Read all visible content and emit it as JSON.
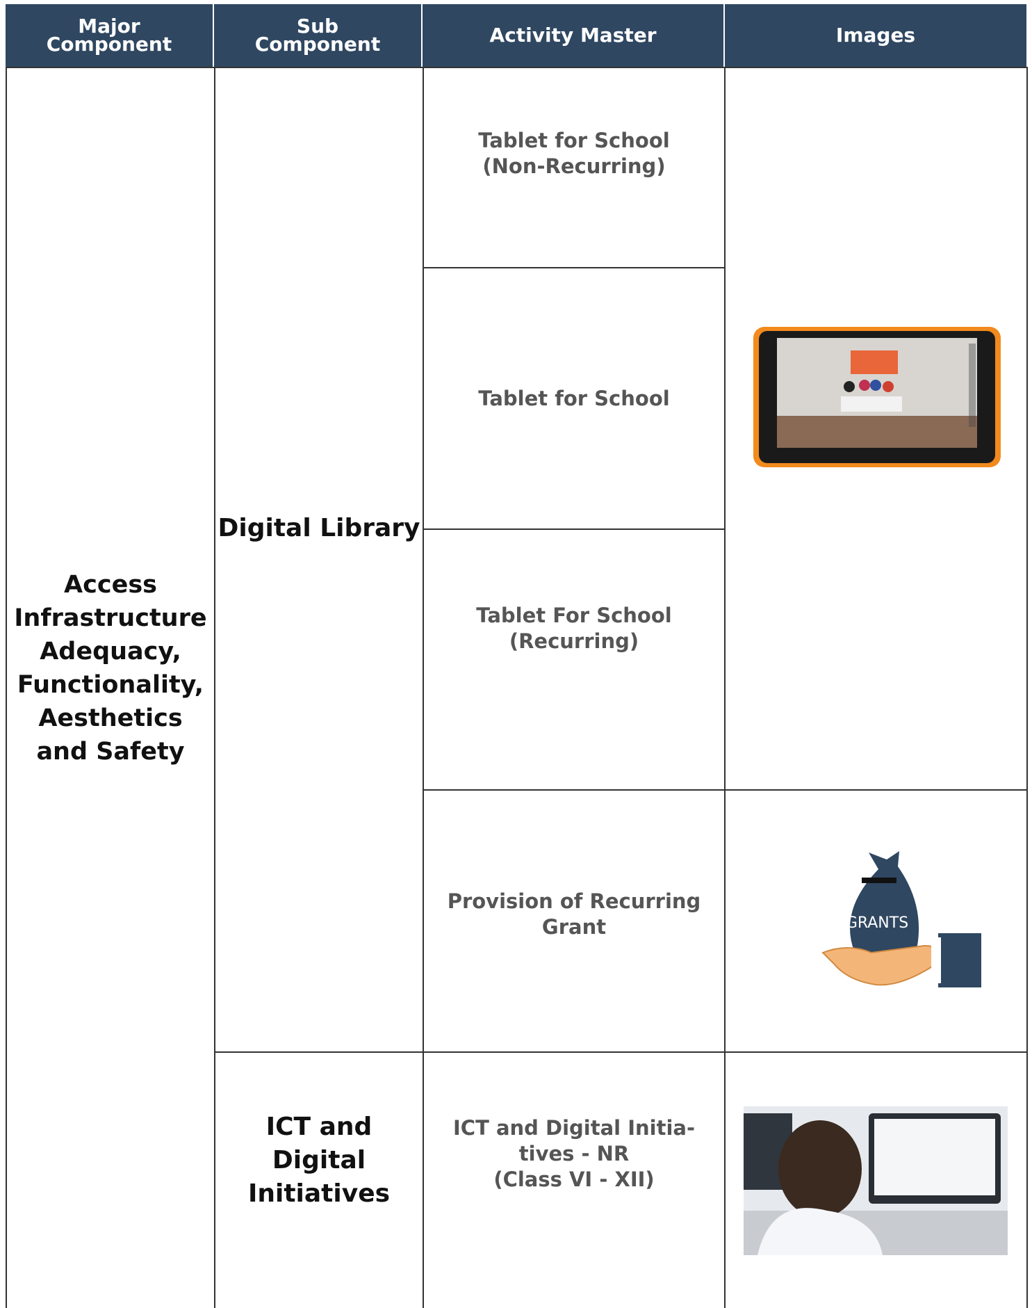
{
  "header": {
    "columns": [
      "Major Component",
      "Sub Component",
      "Activity Master",
      "Images"
    ]
  },
  "table": {
    "major_component": "Access Infrastructure Adequacy, Functionality, Aesthetics and Safety",
    "sub_components": [
      "Digital Library",
      "ICT and Digital Initiatives"
    ],
    "activities": [
      "Tablet for School\n(Non-Recurring)",
      "Tablet for School",
      "Tablet For School\n(Recurring)",
      "Provision of Recurring\nGrant",
      "ICT and Digital Initia-\ntives - NR\n(Class VI - XII)"
    ],
    "images": [
      {
        "label": "GRANTS"
      }
    ]
  }
}
